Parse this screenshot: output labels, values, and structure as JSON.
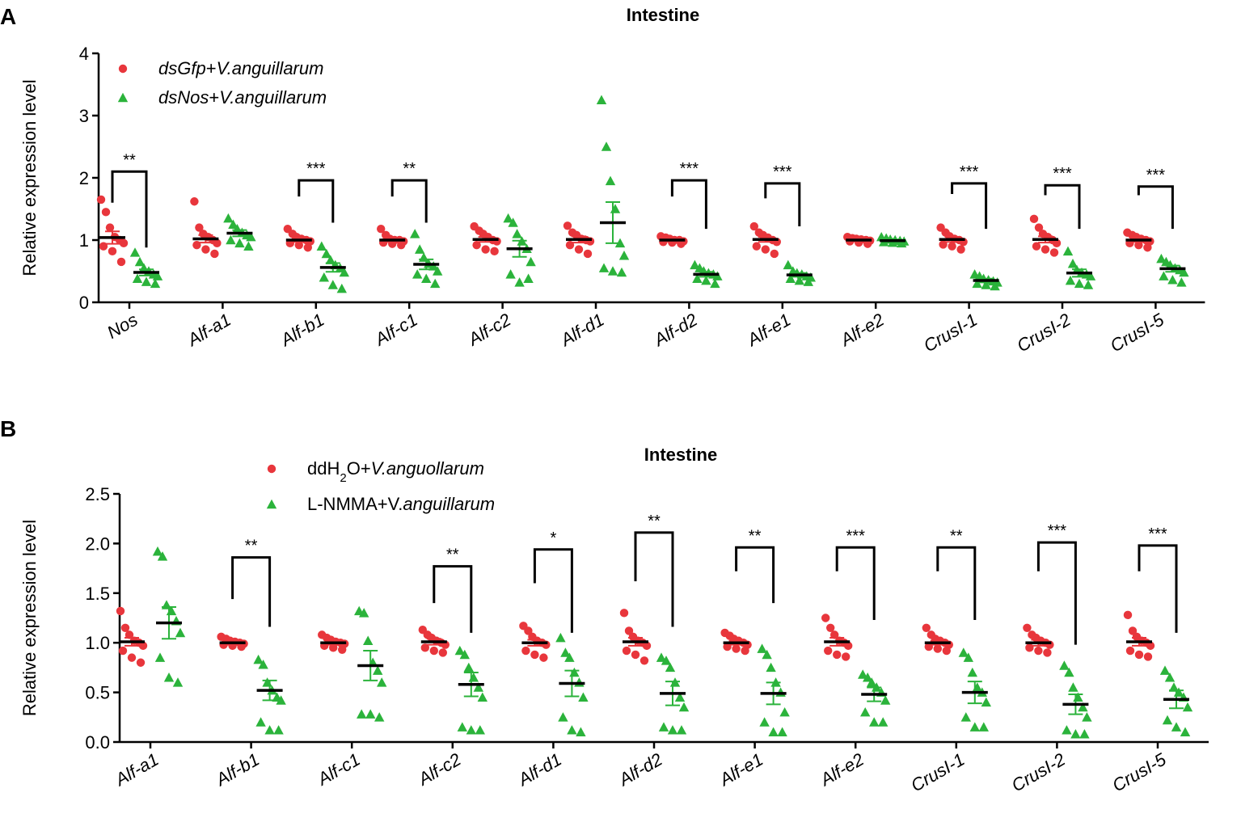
{
  "colors": {
    "red": "#e8363c",
    "green": "#2bb33b",
    "black": "#000000"
  },
  "chart_data": [
    {
      "panel": "A",
      "type": "scatter",
      "title": "Intestine",
      "ylabel": "Relative expression level",
      "ylim": [
        0,
        4
      ],
      "yticks": [
        "0",
        "1",
        "2",
        "3",
        "4"
      ],
      "categories": [
        "Nos",
        "Alf-a1",
        "Alf-b1",
        "Alf-c1",
        "Alf-c2",
        "Alf-d1",
        "Alf-d2",
        "Alf-e1",
        "Alf-e2",
        "CrusI-1",
        "CrusI-2",
        "CrusI-5"
      ],
      "legend": [
        {
          "prefix": "",
          "italic": "dsGfp",
          "suffix": "+",
          "italic2": "V.anguillarum",
          "marker": "circle",
          "color": "red"
        },
        {
          "prefix": "",
          "italic": "dsNos",
          "suffix": "+",
          "italic2": "V.anguillarum",
          "marker": "triangle",
          "color": "green"
        }
      ],
      "series": [
        {
          "name": "dsGfp+V.anguillarum",
          "means": [
            1.04,
            1.02,
            1.0,
            1.0,
            1.01,
            1.01,
            1.0,
            1.01,
            1.0,
            1.01,
            1.01,
            1.0
          ],
          "sems": [
            0.1,
            0.06,
            0.03,
            0.03,
            0.04,
            0.05,
            0.02,
            0.04,
            0.02,
            0.04,
            0.05,
            0.03
          ],
          "points": [
            [
              1.65,
              1.45,
              1.2,
              1.05,
              1.0,
              0.95,
              0.9,
              0.82,
              0.65
            ],
            [
              1.62,
              1.2,
              1.1,
              1.05,
              1.0,
              0.95,
              0.92,
              0.85,
              0.78
            ],
            [
              1.18,
              1.1,
              1.05,
              1.02,
              1.0,
              0.98,
              0.95,
              0.92,
              0.88
            ],
            [
              1.18,
              1.08,
              1.02,
              1.0,
              1.0,
              0.98,
              0.96,
              0.94,
              0.92
            ],
            [
              1.22,
              1.15,
              1.1,
              1.05,
              1.0,
              0.98,
              0.92,
              0.85,
              0.82
            ],
            [
              1.23,
              1.12,
              1.08,
              1.02,
              1.0,
              0.98,
              0.92,
              0.85,
              0.78
            ],
            [
              1.06,
              1.04,
              1.02,
              1.0,
              1.0,
              0.98,
              0.97,
              0.96,
              0.94
            ],
            [
              1.22,
              1.12,
              1.08,
              1.04,
              1.0,
              0.97,
              0.9,
              0.85,
              0.78
            ],
            [
              1.05,
              1.03,
              1.02,
              1.01,
              1.0,
              0.99,
              0.98,
              0.96,
              0.94
            ],
            [
              1.2,
              1.12,
              1.06,
              1.02,
              1.0,
              0.97,
              0.93,
              0.9,
              0.85
            ],
            [
              1.34,
              1.2,
              1.1,
              1.05,
              1.0,
              0.95,
              0.9,
              0.85,
              0.8
            ],
            [
              1.12,
              1.08,
              1.05,
              1.02,
              1.0,
              0.98,
              0.95,
              0.92,
              0.88
            ]
          ]
        },
        {
          "name": "dsNos+V.anguillarum",
          "means": [
            0.48,
            1.11,
            0.56,
            0.61,
            0.86,
            1.28,
            0.45,
            0.44,
            0.99,
            0.35,
            0.47,
            0.54
          ],
          "sems": [
            0.05,
            0.05,
            0.07,
            0.08,
            0.13,
            0.33,
            0.04,
            0.03,
            0.02,
            0.03,
            0.06,
            0.05
          ],
          "points": [
            [
              0.8,
              0.65,
              0.55,
              0.5,
              0.45,
              0.42,
              0.38,
              0.33,
              0.3
            ],
            [
              1.35,
              1.25,
              1.18,
              1.12,
              1.08,
              1.05,
              1.0,
              0.95,
              0.9
            ],
            [
              0.9,
              0.78,
              0.68,
              0.6,
              0.55,
              0.48,
              0.4,
              0.28,
              0.22
            ],
            [
              1.1,
              0.85,
              0.72,
              0.62,
              0.58,
              0.5,
              0.45,
              0.38,
              0.3
            ],
            [
              1.35,
              1.28,
              1.1,
              0.98,
              0.86,
              0.65,
              0.45,
              0.32,
              0.38
            ],
            [
              3.25,
              2.5,
              1.95,
              1.5,
              0.95,
              0.75,
              0.55,
              0.5,
              0.48
            ],
            [
              0.6,
              0.55,
              0.5,
              0.47,
              0.45,
              0.42,
              0.38,
              0.35,
              0.3
            ],
            [
              0.6,
              0.5,
              0.47,
              0.45,
              0.42,
              0.4,
              0.38,
              0.35,
              0.33
            ],
            [
              1.05,
              1.03,
              1.01,
              1.0,
              0.99,
              0.98,
              0.97,
              0.96,
              0.95
            ],
            [
              0.45,
              0.42,
              0.38,
              0.36,
              0.34,
              0.32,
              0.3,
              0.28,
              0.26
            ],
            [
              0.82,
              0.62,
              0.52,
              0.48,
              0.45,
              0.42,
              0.35,
              0.3,
              0.28
            ],
            [
              0.7,
              0.65,
              0.6,
              0.55,
              0.52,
              0.48,
              0.42,
              0.36,
              0.32
            ]
          ]
        }
      ],
      "significance": [
        {
          "category": "Nos",
          "label": "**",
          "top": 2.1,
          "left_end": 1.6,
          "right_end": 0.88
        },
        {
          "category": "Alf-b1",
          "label": "***",
          "top": 1.96,
          "left_end": 1.7,
          "right_end": 1.28
        },
        {
          "category": "Alf-c1",
          "label": "**",
          "top": 1.96,
          "left_end": 1.7,
          "right_end": 1.28
        },
        {
          "category": "Alf-d2",
          "label": "***",
          "top": 1.96,
          "left_end": 1.7,
          "right_end": 1.18
        },
        {
          "category": "Alf-e1",
          "label": "***",
          "top": 1.91,
          "left_end": 1.67,
          "right_end": 1.22
        },
        {
          "category": "CrusI-1",
          "label": "***",
          "top": 1.91,
          "left_end": 1.74,
          "right_end": 1.18
        },
        {
          "category": "CrusI-2",
          "label": "***",
          "top": 1.88,
          "left_end": 1.72,
          "right_end": 1.18
        },
        {
          "category": "CrusI-5",
          "label": "***",
          "top": 1.86,
          "left_end": 1.72,
          "right_end": 1.18
        }
      ]
    },
    {
      "panel": "B",
      "type": "scatter",
      "title": "Intestine",
      "ylabel": "Relative expression level",
      "ylim": [
        0,
        2.5
      ],
      "yticks": [
        "0.0",
        "0.5",
        "1.0",
        "1.5",
        "2.0",
        "2.5"
      ],
      "categories": [
        "Alf-a1",
        "Alf-b1",
        "Alf-c1",
        "Alf-c2",
        "Alf-d1",
        "Alf-d2",
        "Alf-e1",
        "Alf-e2",
        "CrusI-1",
        "CrusI-2",
        "CrusI-5"
      ],
      "legend": [
        {
          "prefix": "ddH",
          "sub": "2",
          "suffix": "O+",
          "italic2": "V.anguollarum",
          "marker": "circle",
          "color": "red"
        },
        {
          "prefix": "L-NMMA+V.",
          "sub": "",
          "suffix": "",
          "italic2": "anguillarum",
          "marker": "triangle",
          "color": "green"
        }
      ],
      "series": [
        {
          "name": "ddH2O+V.anguollarum",
          "means": [
            1.01,
            1.0,
            1.0,
            1.01,
            1.0,
            1.01,
            1.0,
            1.01,
            1.0,
            1.0,
            1.01
          ],
          "sems": [
            0.04,
            0.02,
            0.02,
            0.03,
            0.03,
            0.04,
            0.02,
            0.04,
            0.02,
            0.03,
            0.04
          ],
          "points": [
            [
              1.32,
              1.15,
              1.08,
              1.02,
              1.0,
              0.97,
              0.92,
              0.85,
              0.8
            ],
            [
              1.06,
              1.04,
              1.02,
              1.01,
              1.0,
              0.99,
              0.98,
              0.97,
              0.96
            ],
            [
              1.08,
              1.05,
              1.03,
              1.01,
              1.0,
              0.99,
              0.97,
              0.95,
              0.93
            ],
            [
              1.13,
              1.08,
              1.05,
              1.02,
              1.0,
              0.98,
              0.95,
              0.92,
              0.9
            ],
            [
              1.17,
              1.12,
              1.06,
              1.02,
              1.0,
              0.98,
              0.92,
              0.88,
              0.85
            ],
            [
              1.3,
              1.12,
              1.06,
              1.02,
              1.0,
              0.97,
              0.92,
              0.88,
              0.82
            ],
            [
              1.1,
              1.07,
              1.04,
              1.02,
              1.0,
              0.98,
              0.96,
              0.94,
              0.92
            ],
            [
              1.25,
              1.15,
              1.08,
              1.02,
              1.0,
              0.97,
              0.92,
              0.88,
              0.86
            ],
            [
              1.15,
              1.08,
              1.04,
              1.02,
              1.0,
              0.98,
              0.96,
              0.94,
              0.92
            ],
            [
              1.15,
              1.08,
              1.05,
              1.02,
              1.0,
              0.98,
              0.95,
              0.92,
              0.9
            ],
            [
              1.28,
              1.12,
              1.06,
              1.02,
              1.0,
              0.97,
              0.92,
              0.88,
              0.86
            ]
          ]
        },
        {
          "name": "L-NMMA+V.anguillarum",
          "means": [
            1.2,
            0.52,
            0.77,
            0.58,
            0.59,
            0.49,
            0.49,
            0.48,
            0.5,
            0.38,
            0.43
          ],
          "sems": [
            0.16,
            0.1,
            0.15,
            0.12,
            0.13,
            0.12,
            0.11,
            0.07,
            0.11,
            0.1,
            0.09
          ],
          "points": [
            [
              1.92,
              1.87,
              1.38,
              1.32,
              1.22,
              1.1,
              0.85,
              0.65,
              0.6
            ],
            [
              0.83,
              0.78,
              0.6,
              0.52,
              0.45,
              0.42,
              0.2,
              0.12,
              0.12
            ],
            [
              1.32,
              1.3,
              1.02,
              0.8,
              0.72,
              0.6,
              0.28,
              0.28,
              0.25
            ],
            [
              0.92,
              0.88,
              0.75,
              0.65,
              0.55,
              0.45,
              0.15,
              0.12,
              0.12
            ],
            [
              1.05,
              0.9,
              0.85,
              0.7,
              0.6,
              0.45,
              0.25,
              0.12,
              0.1
            ],
            [
              0.85,
              0.82,
              0.75,
              0.6,
              0.45,
              0.35,
              0.15,
              0.12,
              0.12
            ],
            [
              0.94,
              0.88,
              0.75,
              0.6,
              0.5,
              0.3,
              0.2,
              0.1,
              0.1
            ],
            [
              0.68,
              0.65,
              0.6,
              0.55,
              0.5,
              0.42,
              0.3,
              0.2,
              0.2
            ],
            [
              0.9,
              0.85,
              0.7,
              0.55,
              0.5,
              0.4,
              0.25,
              0.15,
              0.15
            ],
            [
              0.77,
              0.7,
              0.55,
              0.45,
              0.35,
              0.25,
              0.12,
              0.08,
              0.08
            ],
            [
              0.72,
              0.65,
              0.55,
              0.5,
              0.45,
              0.35,
              0.22,
              0.15,
              0.1
            ]
          ]
        }
      ],
      "significance": [
        {
          "category": "Alf-b1",
          "label": "**",
          "top": 1.86,
          "left_end": 1.44,
          "right_end": 1.16
        },
        {
          "category": "Alf-c2",
          "label": "**",
          "top": 1.77,
          "left_end": 1.4,
          "right_end": 1.1
        },
        {
          "category": "Alf-d1",
          "label": "*",
          "top": 1.94,
          "left_end": 1.6,
          "right_end": 1.1
        },
        {
          "category": "Alf-d2",
          "label": "**",
          "top": 2.11,
          "left_end": 1.62,
          "right_end": 1.16
        },
        {
          "category": "Alf-e1",
          "label": "**",
          "top": 1.96,
          "left_end": 1.72,
          "right_end": 1.4
        },
        {
          "category": "Alf-e2",
          "label": "***",
          "top": 1.96,
          "left_end": 1.72,
          "right_end": 1.23
        },
        {
          "category": "CrusI-1",
          "label": "**",
          "top": 1.96,
          "left_end": 1.72,
          "right_end": 1.23
        },
        {
          "category": "CrusI-2",
          "label": "***",
          "top": 2.01,
          "left_end": 1.72,
          "right_end": 0.98
        },
        {
          "category": "CrusI-5",
          "label": "***",
          "top": 1.98,
          "left_end": 1.72,
          "right_end": 1.1
        }
      ]
    }
  ]
}
